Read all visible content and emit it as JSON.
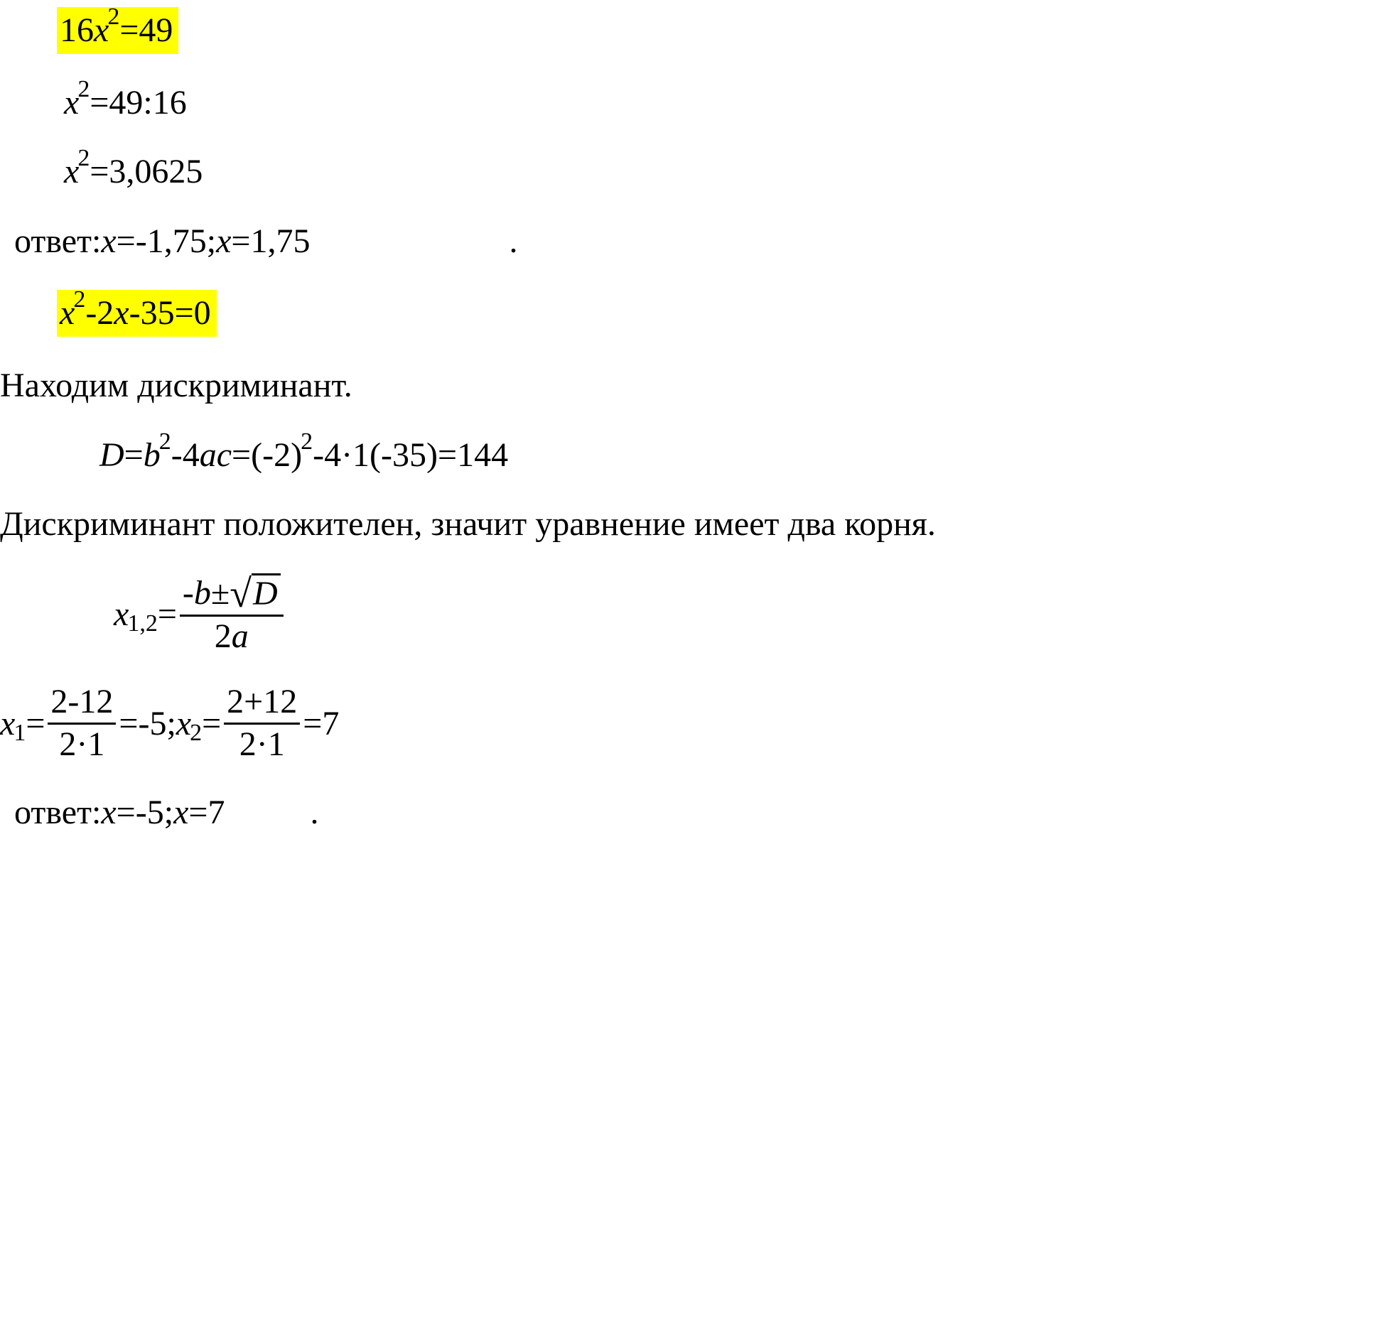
{
  "highlight_color": "#ffff00",
  "text_color": "#000000",
  "background_color": "#ffffff",
  "font_family": "Times New Roman",
  "base_font_size_pt": 36,
  "eq1": {
    "line1_coef": "16",
    "line1_var": "x",
    "line1_exp": "2",
    "line1_eq": "=",
    "line1_rhs": "49",
    "line2_var": "x",
    "line2_exp": "2",
    "line2_eq": "=",
    "line2_rhs": "49:16",
    "line3_var": "x",
    "line3_exp": "2",
    "line3_eq": "=",
    "line3_rhs": "3,0625",
    "answer_label": "ответ: ",
    "answer_x1_var": "x",
    "answer_x1_eq": "=",
    "answer_x1_val": "-1,75",
    "answer_sep": ";",
    "answer_x2_var": "x",
    "answer_x2_eq": "=",
    "answer_x2_val": "1,75",
    "period": "."
  },
  "eq2": {
    "hl_var": "x",
    "hl_exp": "2",
    "hl_rest": "-2",
    "hl_x": "x",
    "hl_tail": "-35=0",
    "disc_label": "Находим дискриминант.",
    "D": "D",
    "eq": "=",
    "b": "b",
    "b_exp": "2",
    "minus4ac": "-4",
    "a": "a",
    "c": "c",
    "eq2": "=",
    "open": "(-2)",
    "open_exp": "2",
    "mid": "-4·1(-35)=144",
    "pos_label": "Дискриминант положителен, значит уравнение имеет два корня.",
    "xf_var": "x",
    "xf_sub": "1,2",
    "xf_eq": "=",
    "xf_num_minus": "-",
    "xf_num_b": "b",
    "xf_num_pm": "±",
    "xf_num_D": "D",
    "xf_den_2": "2",
    "xf_den_a": "a",
    "r_x1_var": "x",
    "r_x1_sub": "1",
    "r_x1_eq": "=",
    "r_x1_num": "2-12",
    "r_x1_den": "2·1",
    "r_x1_eq2": "=",
    "r_x1_val": "-5",
    "r_sep": " ;",
    "r_x2_var": "x",
    "r_x2_sub": "2",
    "r_x2_eq": "=",
    "r_x2_num": "2+12",
    "r_x2_den": "2·1",
    "r_x2_eq2": "=",
    "r_x2_val": "7",
    "ans_label": "ответ: ",
    "ans_x1_var": "x",
    "ans_x1_eq": "=",
    "ans_x1_val": "-5",
    "ans_sep": ";",
    "ans_x2_var": "x",
    "ans_x2_eq": "=",
    "ans_x2_val": "7",
    "ans_period": "."
  }
}
